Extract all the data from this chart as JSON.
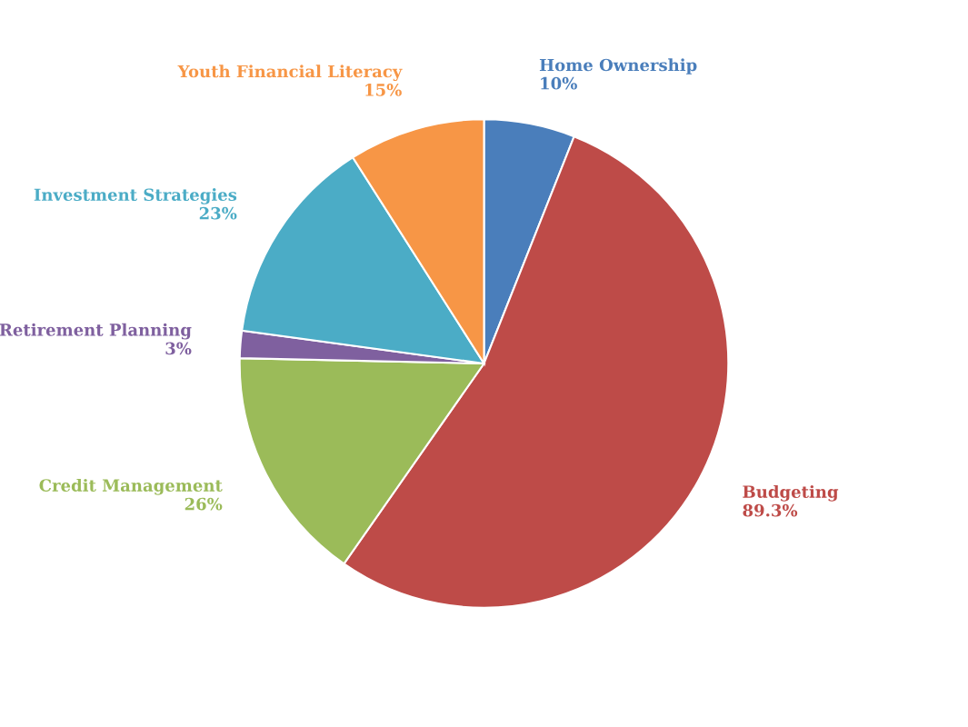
{
  "chart_data": {
    "type": "pie",
    "categories": [
      "Home Ownership",
      "Budgeting",
      "Credit Management",
      "Retirement Planning",
      "Investment Strategies",
      "Youth Financial Literacy"
    ],
    "values": [
      10,
      89.3,
      26,
      3,
      23,
      15
    ],
    "value_labels": [
      "10%",
      "89.3%",
      "26%",
      "3%",
      "23%",
      "15%"
    ],
    "colors": [
      "#4a7ebb",
      "#be4b48",
      "#9bbb59",
      "#7f609f",
      "#4bacc6",
      "#f79646"
    ],
    "legend": false
  }
}
